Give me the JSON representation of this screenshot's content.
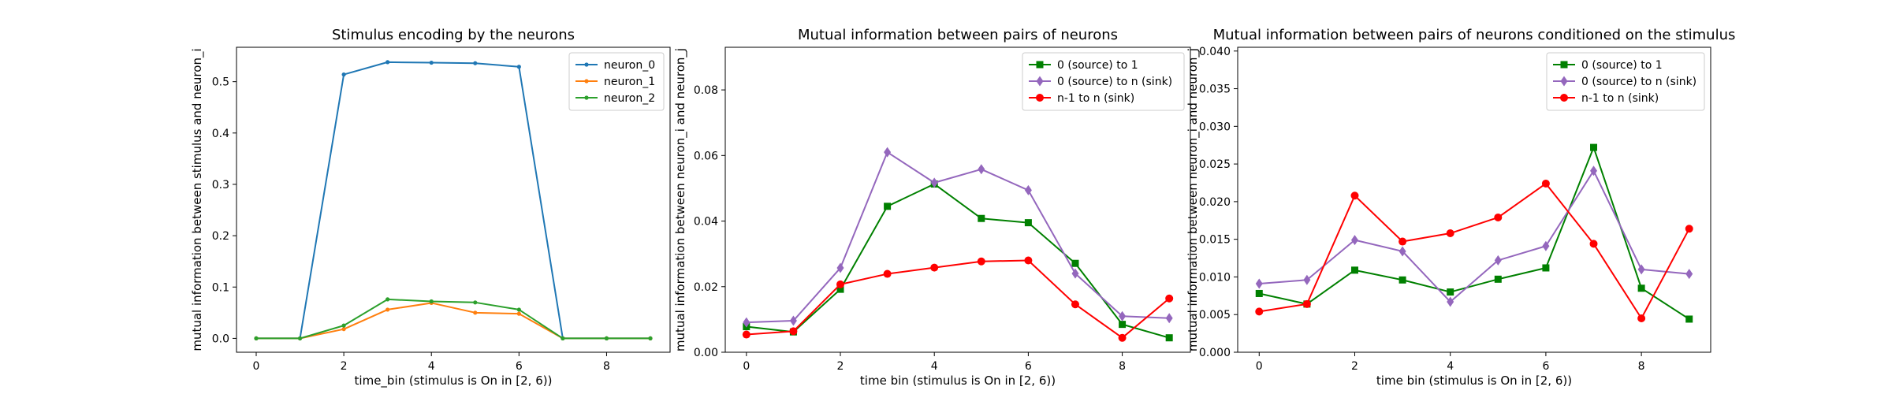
{
  "chart_data": [
    {
      "type": "line",
      "title": "Stimulus encoding by the neurons",
      "xlabel": "time_bin (stimulus is On in [2, 6))",
      "ylabel": "mutual information between stimulus and neuron_i",
      "xlim": [
        -0.45,
        9.45
      ],
      "ylim": [
        -0.027,
        0.567
      ],
      "xticks": [
        0,
        2,
        4,
        6,
        8
      ],
      "yticks": [
        0.0,
        0.1,
        0.2,
        0.3,
        0.4,
        0.5
      ],
      "ytick_format": 1,
      "legend_position": "top-right",
      "x": [
        0,
        1,
        2,
        3,
        4,
        5,
        6,
        7,
        8,
        9
      ],
      "series": [
        {
          "name": "neuron_0",
          "color": "#1f77b4",
          "marker": "dot",
          "values": [
            0.0,
            0.0,
            0.514,
            0.538,
            0.537,
            0.536,
            0.529,
            0.0,
            0.0,
            0.0
          ]
        },
        {
          "name": "neuron_1",
          "color": "#ff7f0e",
          "marker": "dot",
          "values": [
            0.0,
            0.0,
            0.018,
            0.056,
            0.069,
            0.05,
            0.048,
            0.0,
            0.0,
            0.0
          ]
        },
        {
          "name": "neuron_2",
          "color": "#2ca02c",
          "marker": "dot",
          "values": [
            0.0,
            0.0,
            0.025,
            0.076,
            0.072,
            0.07,
            0.056,
            0.0,
            0.0,
            0.0
          ]
        }
      ]
    },
    {
      "type": "line",
      "title": "Mutual information between pairs of neurons",
      "xlabel": "time bin (stimulus is On in [2, 6))",
      "ylabel": "mutual information between neuron_i and neuron_j",
      "xlim": [
        -0.45,
        9.45
      ],
      "ylim": [
        0.0,
        0.093
      ],
      "xticks": [
        0,
        2,
        4,
        6,
        8
      ],
      "yticks": [
        0.0,
        0.02,
        0.04,
        0.06,
        0.08
      ],
      "ytick_format": 2,
      "legend_position": "top-right",
      "x": [
        0,
        1,
        2,
        3,
        4,
        5,
        6,
        7,
        8,
        9
      ],
      "series": [
        {
          "name": "0 (source) to 1",
          "color": "#008000",
          "marker": "square",
          "values": [
            0.0078,
            0.0062,
            0.0192,
            0.0445,
            0.0513,
            0.0408,
            0.0395,
            0.0271,
            0.0085,
            0.0044
          ]
        },
        {
          "name": "0 (source) to n (sink)",
          "color": "#9467bd",
          "marker": "diamond",
          "values": [
            0.0091,
            0.0096,
            0.0257,
            0.061,
            0.0517,
            0.0558,
            0.0494,
            0.024,
            0.011,
            0.0104
          ]
        },
        {
          "name": "n-1 to n (sink)",
          "color": "#ff0000",
          "marker": "circle",
          "values": [
            0.0054,
            0.0064,
            0.0207,
            0.0239,
            0.0258,
            0.0277,
            0.028,
            0.0146,
            0.0044,
            0.0164
          ]
        }
      ]
    },
    {
      "type": "line",
      "title": "Mutual information between pairs of neurons conditioned on the stimulus",
      "xlabel": "time bin (stimulus is On in [2, 6))",
      "ylabel": "mutual information between neuron_i and neuron_j",
      "xlim": [
        -0.45,
        9.45
      ],
      "ylim": [
        0.0,
        0.0405
      ],
      "xticks": [
        0,
        2,
        4,
        6,
        8
      ],
      "yticks": [
        0.0,
        0.005,
        0.01,
        0.015,
        0.02,
        0.025,
        0.03,
        0.035,
        0.04
      ],
      "ytick_format": 3,
      "legend_position": "top-right",
      "x": [
        0,
        1,
        2,
        3,
        4,
        5,
        6,
        7,
        8,
        9
      ],
      "series": [
        {
          "name": "0 (source) to 1",
          "color": "#008000",
          "marker": "square",
          "values": [
            0.0078,
            0.0064,
            0.0109,
            0.0096,
            0.008,
            0.0097,
            0.0112,
            0.0272,
            0.0085,
            0.0044
          ]
        },
        {
          "name": "0 (source) to n (sink)",
          "color": "#9467bd",
          "marker": "diamond",
          "values": [
            0.0091,
            0.0096,
            0.0149,
            0.0134,
            0.0067,
            0.0122,
            0.0141,
            0.0241,
            0.011,
            0.0104
          ]
        },
        {
          "name": "n-1 to n (sink)",
          "color": "#ff0000",
          "marker": "circle",
          "values": [
            0.0054,
            0.0064,
            0.0208,
            0.0147,
            0.0158,
            0.0179,
            0.0224,
            0.0144,
            0.0045,
            0.0164
          ]
        }
      ]
    }
  ]
}
